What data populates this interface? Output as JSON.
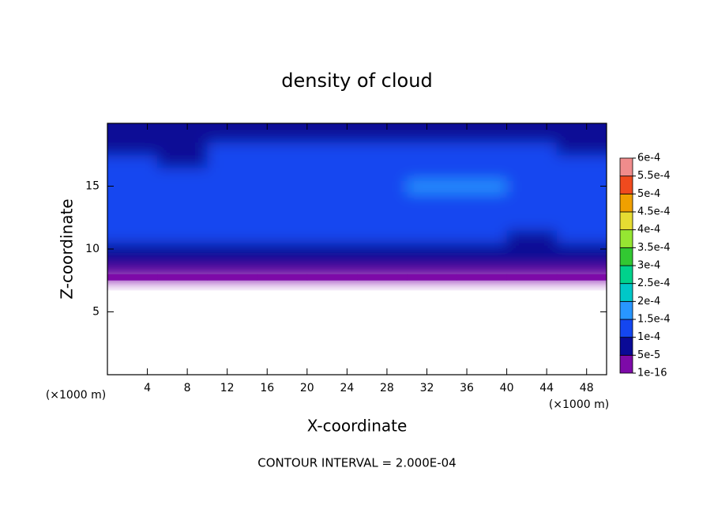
{
  "chart_data": {
    "type": "contour",
    "title": "density of cloud",
    "x_label": "X-coordinate",
    "y_label": "Z-coordinate",
    "x_unit": "(×1000 m)",
    "y_unit": "(×1000 m)",
    "note": "CONTOUR INTERVAL = 2.000E-04",
    "xlim": [
      0,
      50
    ],
    "ylim": [
      0,
      20
    ],
    "xticks": [
      4,
      8,
      12,
      16,
      20,
      24,
      28,
      32,
      36,
      40,
      44,
      48
    ],
    "yticks": [
      5,
      10,
      15
    ],
    "x": [
      2.5,
      7.5,
      12.5,
      17.5,
      22.5,
      27.5,
      32.5,
      37.5,
      42.5,
      47.5
    ],
    "y": [
      8,
      9,
      10,
      11,
      12,
      13,
      14,
      15,
      16,
      17,
      18,
      19
    ],
    "z": [
      [
        3e-05,
        3e-05,
        3e-05,
        3e-05,
        3e-05,
        3e-05,
        3e-05,
        3e-05,
        3e-05,
        3e-05
      ],
      [
        7e-05,
        7e-05,
        7e-05,
        7e-05,
        7e-05,
        7e-05,
        7e-05,
        7e-05,
        7e-05,
        7e-05
      ],
      [
        9e-05,
        9e-05,
        9e-05,
        9e-05,
        9e-05,
        9e-05,
        9e-05,
        9e-05,
        9e-05,
        9e-05
      ],
      [
        0.00011,
        0.00011,
        0.00011,
        0.00011,
        0.00011,
        0.00011,
        0.00011,
        0.00011,
        9e-05,
        0.00011
      ],
      [
        0.00012,
        0.00012,
        0.00012,
        0.00012,
        0.00012,
        0.00012,
        0.00012,
        0.00012,
        0.00012,
        0.00012
      ],
      [
        0.00013,
        0.00013,
        0.00013,
        0.00013,
        0.00013,
        0.00013,
        0.00013,
        0.00013,
        0.00013,
        0.00013
      ],
      [
        0.00013,
        0.00013,
        0.00013,
        0.00013,
        0.00013,
        0.00013,
        0.00014,
        0.00014,
        0.00013,
        0.00013
      ],
      [
        0.00012,
        0.00012,
        0.00013,
        0.00013,
        0.00014,
        0.00014,
        0.00016,
        0.00016,
        0.00013,
        0.00012
      ],
      [
        0.00011,
        0.0001,
        0.00012,
        0.00013,
        0.00013,
        0.00013,
        0.00014,
        0.00014,
        0.00013,
        0.00012
      ],
      [
        0.0001,
        8e-05,
        0.00011,
        0.00012,
        0.00012,
        0.00012,
        0.00012,
        0.00012,
        0.00012,
        0.00011
      ],
      [
        9e-05,
        9e-05,
        0.0001,
        0.00011,
        0.00011,
        0.00011,
        0.00011,
        0.00011,
        0.00011,
        9e-05
      ],
      [
        8e-05,
        8e-05,
        8e-05,
        8e-05,
        8e-05,
        8e-05,
        8e-05,
        8e-05,
        8e-05,
        6e-05
      ]
    ],
    "levels": [
      {
        "value": 1e-16,
        "label": "1e-16"
      },
      {
        "value": 5e-05,
        "label": "5e-5"
      },
      {
        "value": 0.0001,
        "label": "1e-4"
      },
      {
        "value": 0.00015,
        "label": "1.5e-4"
      },
      {
        "value": 0.0002,
        "label": "2e-4"
      },
      {
        "value": 0.00025,
        "label": "2.5e-4"
      },
      {
        "value": 0.0003,
        "label": "3e-4"
      },
      {
        "value": 0.00035,
        "label": "3.5e-4"
      },
      {
        "value": 0.0004,
        "label": "4e-4"
      },
      {
        "value": 0.00045,
        "label": "4.5e-4"
      },
      {
        "value": 0.0005,
        "label": "5e-4"
      },
      {
        "value": 0.00055,
        "label": "5.5e-4"
      },
      {
        "value": 0.0006,
        "label": "6e-4"
      }
    ],
    "colors": [
      "#7d0aa8",
      "#0a0a96",
      "#1446f0",
      "#2896ff",
      "#00c8c8",
      "#00d28c",
      "#32c832",
      "#96e632",
      "#e6dc32",
      "#f0a000",
      "#f04a1e",
      "#f08c8c"
    ]
  }
}
